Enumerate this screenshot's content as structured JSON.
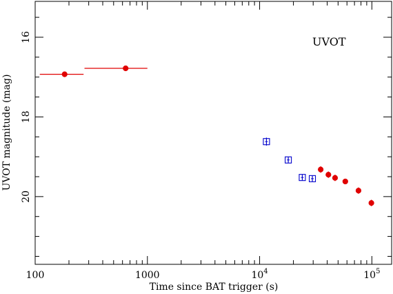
{
  "chart_data": {
    "type": "scatter",
    "xscale": "log",
    "xlim": [
      100,
      150000
    ],
    "ylim": [
      21.7,
      15.1
    ],
    "xlabel": "Time since BAT trigger (s)",
    "ylabel": "UVOT magnitude (mag)",
    "annotation": "UVOT",
    "x_ticks": [
      {
        "value": 100,
        "label": "100"
      },
      {
        "value": 1000,
        "label": "1000"
      },
      {
        "value": 10000,
        "base": "10",
        "exp": "4"
      },
      {
        "value": 100000,
        "base": "10",
        "exp": "5"
      }
    ],
    "y_ticks": [
      {
        "value": 16,
        "label": "16"
      },
      {
        "value": 18,
        "label": "18"
      },
      {
        "value": 20,
        "label": "20"
      }
    ],
    "series": [
      {
        "marker": "filled-circle",
        "color": "#e00000",
        "points": [
          {
            "x": 183,
            "y": 16.93,
            "xerr": [
              110,
              270
            ],
            "yerr": 0.05
          },
          {
            "x": 640,
            "y": 16.78,
            "xerr": [
              275,
              1000
            ],
            "yerr": 0.05
          },
          {
            "x": 35000,
            "y": 19.32,
            "yerr": 0.08
          },
          {
            "x": 41000,
            "y": 19.45,
            "yerr": 0.08
          },
          {
            "x": 47000,
            "y": 19.53,
            "yerr": 0.08
          },
          {
            "x": 58000,
            "y": 19.62,
            "yerr": 0.07
          },
          {
            "x": 76000,
            "y": 19.85,
            "yerr": 0.08
          },
          {
            "x": 99000,
            "y": 20.16,
            "yerr": 0.08
          }
        ]
      },
      {
        "marker": "open-square",
        "color": "#0000cc",
        "points": [
          {
            "x": 11500,
            "y": 18.62,
            "yerr": 0.1
          },
          {
            "x": 18000,
            "y": 19.08,
            "yerr": 0.07
          },
          {
            "x": 24000,
            "y": 19.52,
            "yerr": 0.07
          },
          {
            "x": 29500,
            "y": 19.55,
            "yerr": 0.07
          }
        ]
      }
    ]
  }
}
